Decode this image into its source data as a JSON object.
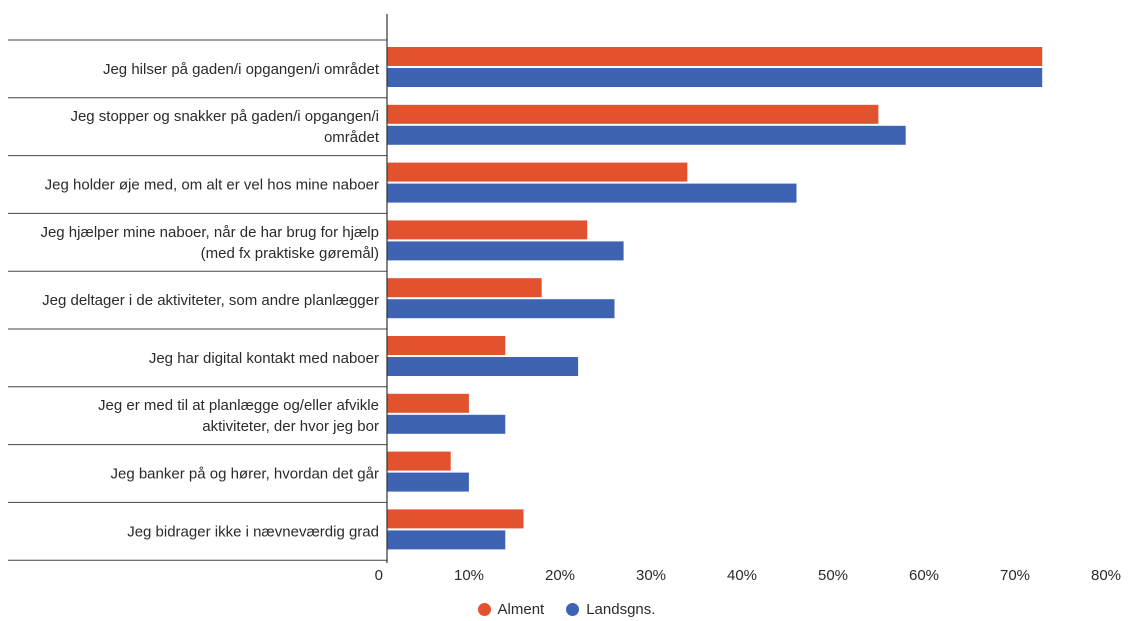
{
  "chart_data": {
    "type": "bar",
    "orientation": "horizontal",
    "categories": [
      "Jeg hilser på gaden/i opgangen/i området",
      "Jeg stopper og snakker på gaden/i opgangen/i området",
      "Jeg holder øje med, om alt er vel hos mine naboer",
      "Jeg hjælper mine naboer, når de har brug for hjælp (med fx praktiske gøremål)",
      "Jeg deltager i de aktiviteter, som andre planlægger",
      "Jeg har digital kontakt med naboer",
      "Jeg er med til at planlægge og/eller afvikle aktiviteter, der hvor jeg bor",
      "Jeg banker på og hører, hvordan det går",
      "Jeg bidrager ikke i nævneværdig grad"
    ],
    "category_lines": [
      [
        "Jeg hilser på gaden/i opgangen/i området"
      ],
      [
        "Jeg stopper og snakker på gaden/i opgangen/i",
        "området"
      ],
      [
        "Jeg holder øje med, om alt er vel hos mine naboer"
      ],
      [
        "Jeg hjælper mine naboer, når de har brug for hjælp",
        "(med fx praktiske gøremål)"
      ],
      [
        "Jeg deltager i de aktiviteter, som andre planlægger"
      ],
      [
        "Jeg har digital kontakt med naboer"
      ],
      [
        "Jeg er med til at planlægge og/eller afvikle",
        "aktiviteter, der hvor jeg bor"
      ],
      [
        "Jeg banker på og hører, hvordan det går"
      ],
      [
        "Jeg bidrager ikke i nævneværdig grad"
      ]
    ],
    "series": [
      {
        "name": "Alment",
        "color": "#e2522e",
        "values": [
          72,
          54,
          33,
          22,
          17,
          13,
          9,
          7,
          15
        ]
      },
      {
        "name": "Landsgns.",
        "color": "#3f63b3",
        "values": [
          72,
          57,
          45,
          26,
          25,
          21,
          13,
          9,
          13
        ]
      }
    ],
    "xlim": [
      0,
      80
    ],
    "xticks": [
      0,
      10,
      20,
      30,
      40,
      50,
      60,
      70,
      80
    ],
    "xtick_labels": [
      "0",
      "10%",
      "20%",
      "30%",
      "40%",
      "50%",
      "60%",
      "70%",
      "80%"
    ],
    "legend_position": "bottom-center",
    "grid": false
  }
}
